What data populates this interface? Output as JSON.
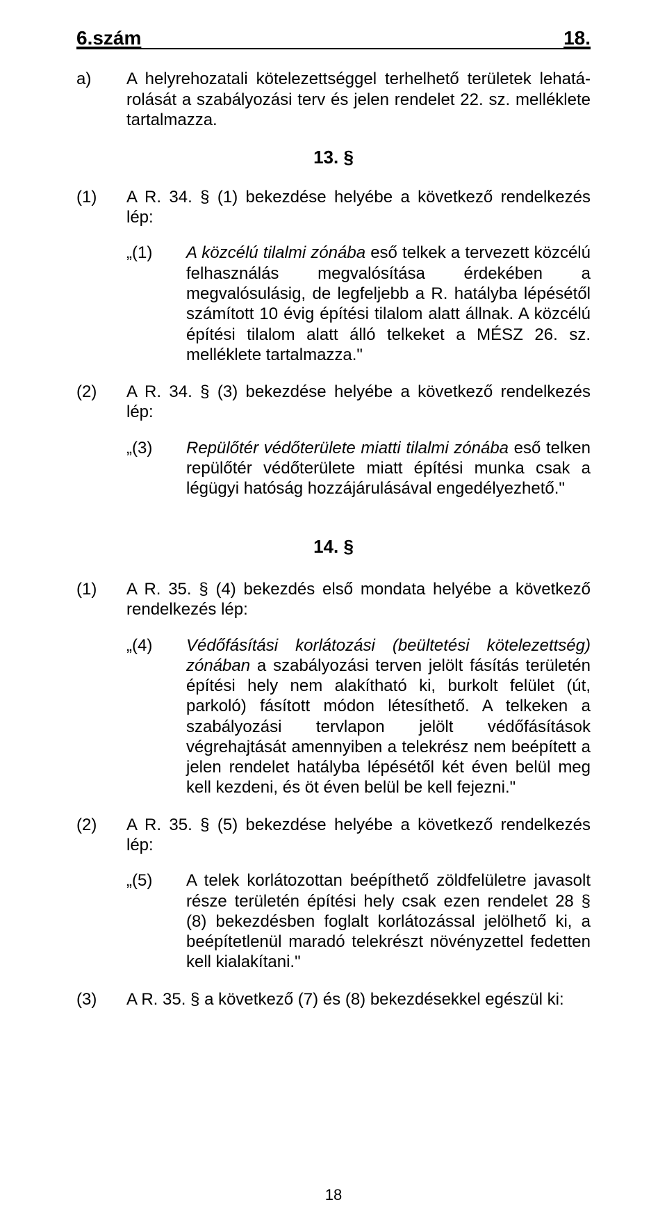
{
  "header": {
    "left": "6.szám",
    "right": "18."
  },
  "section13": {
    "a": {
      "marker": "a)",
      "text": "A helyrehozatali kötelezettséggel terhelhető területek lehatá­rolását a szabályozási terv és jelen rendelet 22. sz. mellékle­te tartalmazza."
    },
    "number": "13. §",
    "p1": {
      "marker": "(1)",
      "intro": "A R. 34. § (1) bekezdése helyébe a következő rendelkezés lép:",
      "sub_marker": "„(1)",
      "sub_text_part1": "A közcélú tilalmi zónába",
      "sub_text_part2": " eső telkek a tervezett közcélú fel­használás megvalósítása érdekében a megvalósulásig, de legfeljebb a R. hatályba lépésétől számított 10 évig építési ti­lalom alatt állnak. A közcélú építési tilalom alatt álló telkeket a MÉSZ 26. sz. melléklete tartalmazza.\""
    },
    "p2": {
      "marker": "(2)",
      "intro": "A R. 34. § (3) bekezdése helyébe a következő rendelkezés lép:",
      "sub_marker": "„(3)",
      "sub_text_part1": "Repülőtér védőterülete miatti tilalmi zónába",
      "sub_text_part2": " eső telken re­pülőtér védőterülete miatt építési munka csak a légügyi ha­tóság hozzájárulásával engedélyezhető.\""
    }
  },
  "section14": {
    "number": "14. §",
    "p1": {
      "marker": "(1)",
      "intro": "A R. 35. § (4) bekezdés első mondata helyébe a következő ren­delkezés lép:",
      "sub_marker": "„(4)",
      "sub_text_part1": "Védőfásítási korlátozási (beültetési kötelezettség) zónában",
      "sub_text_part2": " a szabályozási terven jelölt fásítás területén építési hely nem alakítható ki, burkolt felület (út, parkoló) fásított mó­don létesíthető. A telkeken a szabályozási tervlapon jelölt védőfásítások végrehajtását amennyiben a telekrész nem beépített a jelen rendelet hatályba lépésétől két éven belül meg kell kezdeni, és öt éven belül be kell fejezni.\""
    },
    "p2": {
      "marker": "(2)",
      "intro": "A R. 35. § (5) bekezdése helyébe a következő rendelkezés lép:",
      "sub_marker": "„(5)",
      "sub_text": "A telek korlátozottan beépíthető zöldfelületre javasolt része területén építési hely csak ezen rendelet 28 § (8) bekez­désben foglalt korlátozással jelölhető ki, a beépítetlenül maradó telekrészt növényzettel fedetten kell kialakítani.\""
    },
    "p3": {
      "marker": "(3)",
      "text": "A R. 35. § a következő (7) és (8) bekezdésekkel egészül ki:"
    }
  },
  "page_number": "18"
}
